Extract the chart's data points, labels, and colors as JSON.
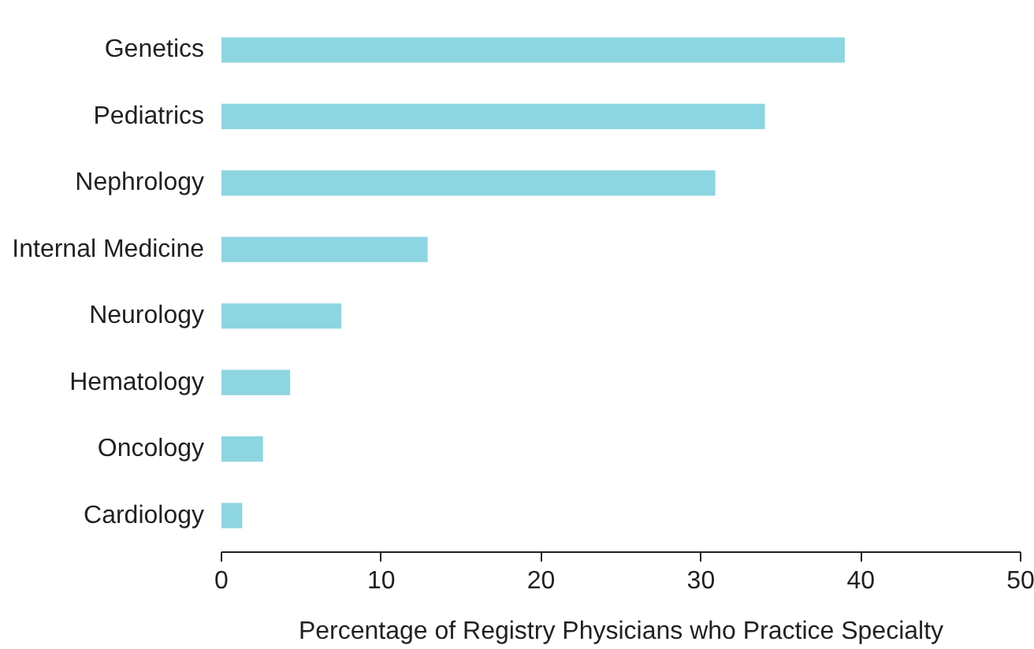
{
  "chart_data": {
    "type": "bar",
    "orientation": "horizontal",
    "xlabel": "Percentage of Registry Physicians who Practice Specialty",
    "categories": [
      "Genetics",
      "Pediatrics",
      "Nephrology",
      "Internal Medicine",
      "Neurology",
      "Hematology",
      "Oncology",
      "Cardiology"
    ],
    "values": [
      39,
      34,
      30.9,
      12.9,
      7.5,
      4.3,
      2.6,
      1.3
    ],
    "color": "#8dd5e0",
    "xlim": [
      0,
      50
    ],
    "xticks": [
      0,
      10,
      20,
      30,
      40,
      50
    ],
    "grid": false
  }
}
